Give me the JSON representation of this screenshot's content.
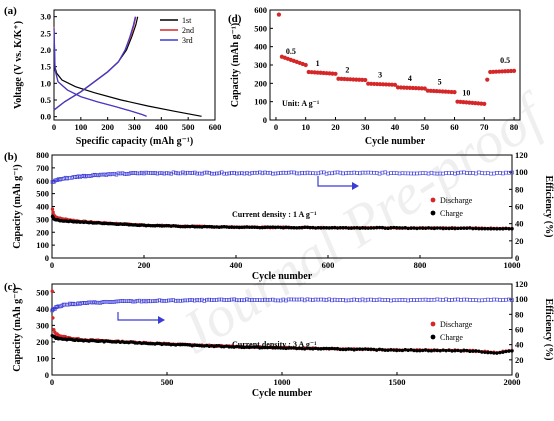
{
  "watermark": "Journal Pre-proof",
  "chart_data": [
    {
      "panel": "(a)",
      "type": "line",
      "xlabel": "Specific capacity (mAh g⁻¹)",
      "ylabel": "Voltage (V vs. K/K⁺)",
      "xlim": [
        0,
        600
      ],
      "ylim": [
        -0.1,
        3.2
      ],
      "xticks": [
        0,
        100,
        200,
        300,
        400,
        500,
        600
      ],
      "yticks": [
        0.0,
        0.5,
        1.0,
        1.5,
        2.0,
        2.5,
        3.0
      ],
      "ytick_labels": [
        "0.0",
        "0.5",
        "1.0",
        "1.5",
        "2.0",
        "2.5",
        "3.0"
      ],
      "legend": "top-right",
      "series": [
        {
          "name": "1st",
          "color": "#000000",
          "discharge": [
            [
              0,
              2.0
            ],
            [
              3,
              1.5
            ],
            [
              10,
              1.3
            ],
            [
              30,
              1.1
            ],
            [
              80,
              0.9
            ],
            [
              150,
              0.72
            ],
            [
              250,
              0.5
            ],
            [
              350,
              0.32
            ],
            [
              450,
              0.16
            ],
            [
              550,
              0.01
            ]
          ],
          "charge": [
            [
              0,
              0.2
            ],
            [
              40,
              0.45
            ],
            [
              100,
              0.75
            ],
            [
              150,
              1.05
            ],
            [
              200,
              1.35
            ],
            [
              240,
              1.65
            ],
            [
              270,
              2.0
            ],
            [
              290,
              2.4
            ],
            [
              305,
              2.75
            ],
            [
              312,
              3.0
            ]
          ]
        },
        {
          "name": "2nd",
          "color": "#d62728",
          "discharge": [
            [
              0,
              2.7
            ],
            [
              4,
              1.4
            ],
            [
              15,
              1.05
            ],
            [
              50,
              0.8
            ],
            [
              100,
              0.6
            ],
            [
              160,
              0.45
            ],
            [
              230,
              0.3
            ],
            [
              290,
              0.16
            ],
            [
              330,
              0.06
            ],
            [
              345,
              0.01
            ]
          ],
          "charge": [
            [
              0,
              0.2
            ],
            [
              40,
              0.45
            ],
            [
              100,
              0.75
            ],
            [
              150,
              1.05
            ],
            [
              200,
              1.35
            ],
            [
              240,
              1.65
            ],
            [
              265,
              2.0
            ],
            [
              285,
              2.4
            ],
            [
              298,
              2.75
            ],
            [
              305,
              3.0
            ]
          ]
        },
        {
          "name": "3rd",
          "color": "#3b3bd6",
          "discharge": [
            [
              0,
              2.65
            ],
            [
              4,
              1.4
            ],
            [
              15,
              1.05
            ],
            [
              50,
              0.8
            ],
            [
              100,
              0.6
            ],
            [
              160,
              0.45
            ],
            [
              230,
              0.3
            ],
            [
              290,
              0.16
            ],
            [
              330,
              0.06
            ],
            [
              345,
              0.01
            ]
          ],
          "charge": [
            [
              0,
              0.2
            ],
            [
              40,
              0.45
            ],
            [
              100,
              0.74
            ],
            [
              150,
              1.04
            ],
            [
              200,
              1.34
            ],
            [
              240,
              1.64
            ],
            [
              265,
              2.0
            ],
            [
              283,
              2.4
            ],
            [
              296,
              2.75
            ],
            [
              303,
              3.0
            ]
          ]
        }
      ]
    },
    {
      "panel": "(d)",
      "type": "scatter",
      "xlabel": "Cycle number",
      "ylabel": "Capacity (mAh g⁻¹)",
      "xlim": [
        -2,
        82
      ],
      "ylim": [
        0,
        600
      ],
      "xticks": [
        0,
        10,
        20,
        30,
        40,
        50,
        60,
        70,
        80
      ],
      "yticks": [
        0,
        100,
        200,
        300,
        400,
        500,
        600
      ],
      "color": "#d62728",
      "unit_text": "Unit: A g⁻¹",
      "rate_labels": [
        {
          "text": "0.5",
          "x": 5,
          "y": 360
        },
        {
          "text": "1",
          "x": 14,
          "y": 295
        },
        {
          "text": "2",
          "x": 24,
          "y": 258
        },
        {
          "text": "3",
          "x": 35,
          "y": 232
        },
        {
          "text": "4",
          "x": 45,
          "y": 213
        },
        {
          "text": "5",
          "x": 55,
          "y": 193
        },
        {
          "text": "10",
          "x": 64,
          "y": 135
        },
        {
          "text": "0.5",
          "x": 77,
          "y": 310
        }
      ],
      "segments": [
        {
          "from": 1,
          "to": 1,
          "start": 575,
          "end": 575
        },
        {
          "from": 2,
          "to": 10,
          "start": 345,
          "end": 300
        },
        {
          "from": 11,
          "to": 20,
          "start": 262,
          "end": 252
        },
        {
          "from": 21,
          "to": 30,
          "start": 225,
          "end": 218
        },
        {
          "from": 31,
          "to": 40,
          "start": 198,
          "end": 192
        },
        {
          "from": 41,
          "to": 50,
          "start": 178,
          "end": 172
        },
        {
          "from": 51,
          "to": 60,
          "start": 160,
          "end": 152
        },
        {
          "from": 61,
          "to": 70,
          "start": 100,
          "end": 88
        },
        {
          "from": 71,
          "to": 71,
          "start": 220,
          "end": 220
        },
        {
          "from": 72,
          "to": 80,
          "start": 262,
          "end": 268
        }
      ]
    },
    {
      "panel": "(b)",
      "type": "scatter",
      "xlabel": "Cycle number",
      "ylabel": "Capacity (mAh g⁻¹)",
      "y2label": "Efficiency (%)",
      "xlim": [
        0,
        1000
      ],
      "ylim": [
        0,
        800
      ],
      "y2lim": [
        0,
        120
      ],
      "xticks": [
        0,
        200,
        400,
        600,
        800,
        1000
      ],
      "yticks": [
        0,
        100,
        200,
        300,
        400,
        500,
        600,
        700,
        800
      ],
      "y2ticks": [
        0,
        20,
        40,
        60,
        80,
        100,
        120
      ],
      "annotation": "Current density : 1 A g⁻¹",
      "legend": "right",
      "series": [
        {
          "name": "Discharge",
          "color": "#d62728",
          "points": [
            [
              1,
              380
            ],
            [
              3,
              345
            ],
            [
              6,
              325
            ],
            [
              10,
              315
            ],
            [
              20,
              305
            ],
            [
              40,
              295
            ],
            [
              60,
              285
            ],
            [
              80,
              280
            ],
            [
              100,
              275
            ],
            [
              150,
              265
            ],
            [
              200,
              255
            ],
            [
              300,
              245
            ],
            [
              400,
              240
            ],
            [
              500,
              238
            ],
            [
              600,
              236
            ],
            [
              700,
              235
            ],
            [
              800,
              233
            ],
            [
              900,
              232
            ],
            [
              950,
              230
            ],
            [
              1000,
              228
            ]
          ]
        },
        {
          "name": "Charge",
          "color": "#000000",
          "points": [
            [
              1,
              320
            ],
            [
              3,
              310
            ],
            [
              6,
              300
            ],
            [
              10,
              295
            ],
            [
              20,
              290
            ],
            [
              40,
              285
            ],
            [
              60,
              280
            ],
            [
              80,
              275
            ],
            [
              100,
              272
            ],
            [
              150,
              263
            ],
            [
              200,
              254
            ],
            [
              300,
              244
            ],
            [
              400,
              239
            ],
            [
              500,
              237
            ],
            [
              600,
              235
            ],
            [
              700,
              234
            ],
            [
              800,
              232
            ],
            [
              900,
              231
            ],
            [
              950,
              229
            ],
            [
              1000,
              227
            ]
          ]
        },
        {
          "name": "Efficiency",
          "axis": "right",
          "color": "#3b3bd6",
          "points": [
            [
              1,
              88
            ],
            [
              10,
              91
            ],
            [
              30,
              93
            ],
            [
              60,
              95
            ],
            [
              100,
              97
            ],
            [
              150,
              98
            ],
            [
              200,
              99
            ],
            [
              400,
              99
            ],
            [
              600,
              99
            ],
            [
              800,
              99
            ],
            [
              1000,
              99
            ]
          ]
        }
      ]
    },
    {
      "panel": "(c)",
      "type": "scatter",
      "xlabel": "Cycle number",
      "ylabel": "Capacity (mAh g⁻¹)",
      "y2label": "Efficiency (%)",
      "xlim": [
        0,
        2000
      ],
      "ylim": [
        0,
        550
      ],
      "y2lim": [
        0,
        120
      ],
      "xticks": [
        0,
        500,
        1000,
        1500,
        2000
      ],
      "yticks": [
        0,
        100,
        200,
        300,
        400,
        500
      ],
      "y2ticks": [
        0,
        20,
        40,
        60,
        80,
        100,
        120
      ],
      "annotation": "Current density : 3 A g⁻¹",
      "legend": "right",
      "series": [
        {
          "name": "Discharge",
          "color": "#d62728",
          "points": [
            [
              1,
              505
            ],
            [
              5,
              280
            ],
            [
              15,
              250
            ],
            [
              40,
              235
            ],
            [
              80,
              222
            ],
            [
              150,
              212
            ],
            [
              250,
              205
            ],
            [
              400,
              195
            ],
            [
              600,
              182
            ],
            [
              800,
              172
            ],
            [
              1000,
              165
            ],
            [
              1200,
              160
            ],
            [
              1400,
              155
            ],
            [
              1600,
              150
            ],
            [
              1800,
              148
            ],
            [
              1880,
              142
            ],
            [
              1920,
              135
            ],
            [
              1960,
              140
            ],
            [
              2000,
              148
            ]
          ]
        },
        {
          "name": "Charge",
          "color": "#000000",
          "points": [
            [
              1,
              240
            ],
            [
              5,
              235
            ],
            [
              15,
              225
            ],
            [
              40,
              218
            ],
            [
              80,
              213
            ],
            [
              150,
              208
            ],
            [
              250,
              202
            ],
            [
              400,
              193
            ],
            [
              600,
              180
            ],
            [
              800,
              170
            ],
            [
              1000,
              163
            ],
            [
              1200,
              158
            ],
            [
              1400,
              153
            ],
            [
              1600,
              149
            ],
            [
              1800,
              147
            ],
            [
              1880,
              140
            ],
            [
              1920,
              133
            ],
            [
              1960,
              138
            ],
            [
              2000,
              146
            ]
          ]
        },
        {
          "name": "Efficiency",
          "axis": "right",
          "color": "#3b3bd6",
          "points": [
            [
              1,
              85
            ],
            [
              20,
              90
            ],
            [
              60,
              93
            ],
            [
              150,
              95
            ],
            [
              300,
              97
            ],
            [
              500,
              98
            ],
            [
              800,
              99
            ],
            [
              1200,
              99
            ],
            [
              1600,
              99
            ],
            [
              2000,
              99
            ]
          ]
        }
      ]
    }
  ]
}
